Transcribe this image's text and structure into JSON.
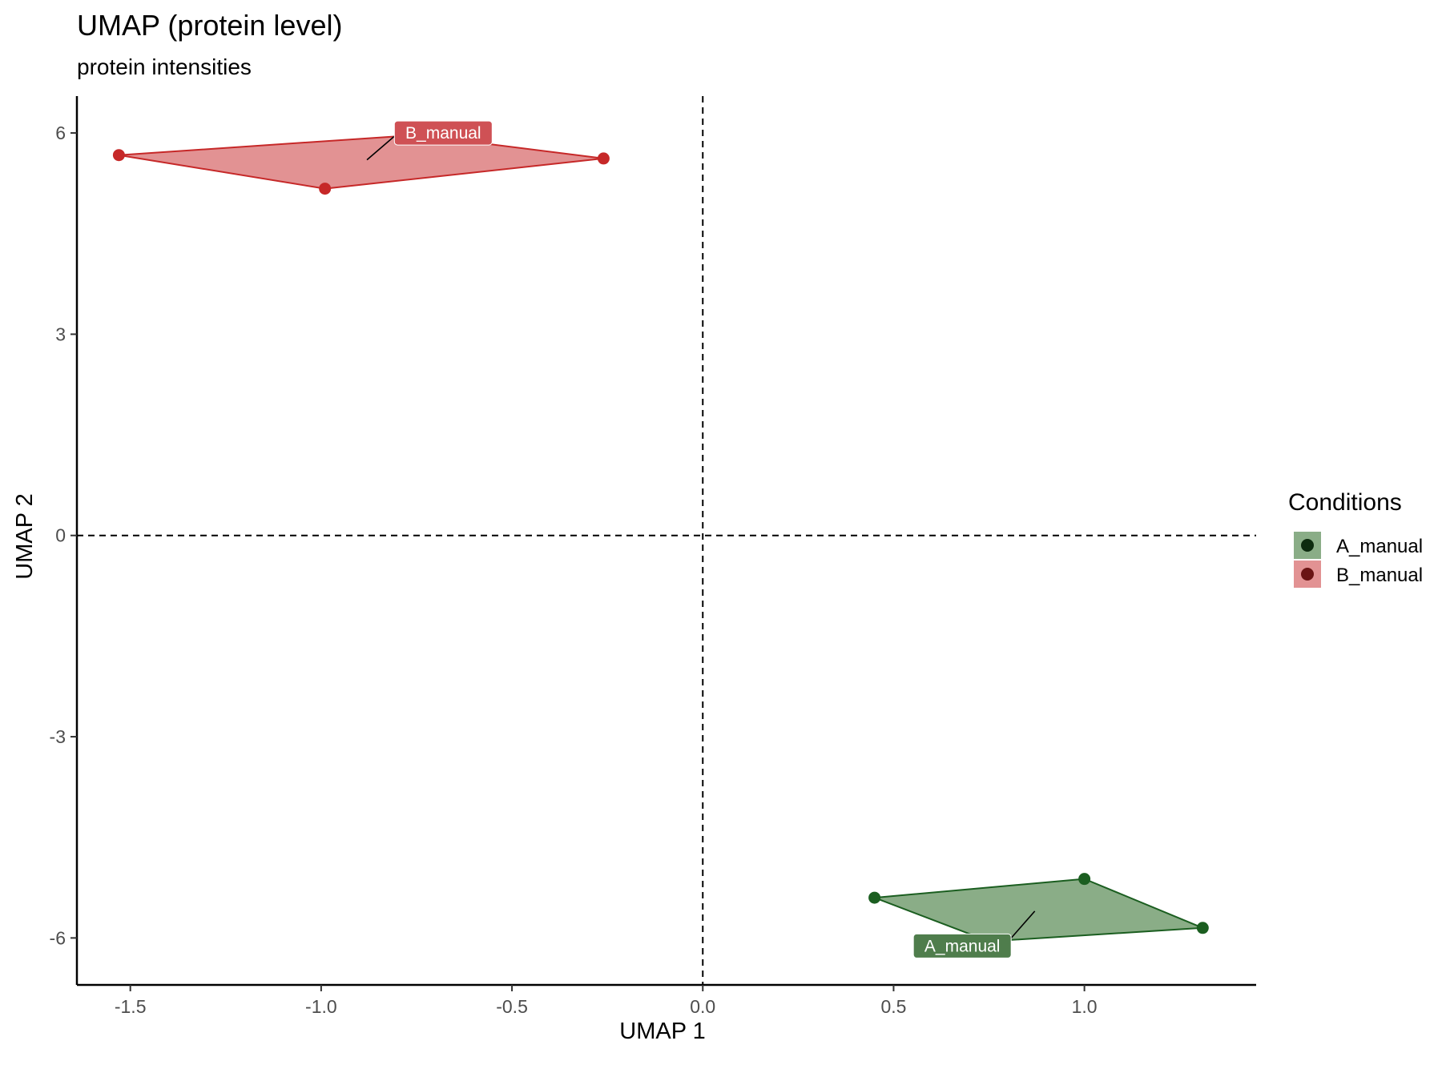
{
  "chart_data": {
    "type": "scatter",
    "title": "UMAP (protein level)",
    "subtitle": "protein intensities",
    "xlabel": "UMAP 1",
    "ylabel": "UMAP 2",
    "xlim": [
      -1.64,
      1.45
    ],
    "ylim": [
      -6.7,
      6.55
    ],
    "x_ticks": [
      -1.5,
      -1.0,
      -0.5,
      0.0,
      0.5,
      1.0
    ],
    "x_tick_labels": [
      "-1.5",
      "-1.0",
      "-0.5",
      "0.0",
      "0.5",
      "1.0"
    ],
    "y_ticks": [
      -6,
      -3,
      0,
      3,
      6
    ],
    "y_tick_labels": [
      "-6",
      "-3",
      "0",
      "3",
      "6"
    ],
    "reference_lines": {
      "x": 0,
      "y": 0,
      "style": "dashed"
    },
    "grid": false,
    "legend": {
      "title": "Conditions",
      "placement": "right"
    },
    "series": [
      {
        "name": "A_manual",
        "color": "#1b5e20",
        "fill": "#8aad87",
        "label_bg": "#4f7d4c",
        "points": [
          {
            "x": 0.45,
            "y": -5.4
          },
          {
            "x": 1.0,
            "y": -5.12
          },
          {
            "x": 1.31,
            "y": -5.85
          },
          {
            "x": 0.75,
            "y": -6.05
          }
        ],
        "label": {
          "text": "A_manual",
          "x": 0.68,
          "y": -6.12,
          "anchor_x": 0.87,
          "anchor_y": -5.6
        }
      },
      {
        "name": "B_manual",
        "color": "#c62828",
        "fill": "#e29293",
        "label_bg": "#cf5155",
        "points": [
          {
            "x": -1.53,
            "y": 5.67
          },
          {
            "x": -0.99,
            "y": 5.17
          },
          {
            "x": -0.26,
            "y": 5.62
          },
          {
            "x": -0.75,
            "y": 5.97
          }
        ],
        "label": {
          "text": "B_manual",
          "x": -0.68,
          "y": 6.0,
          "anchor_x": -0.88,
          "anchor_y": 5.6
        }
      }
    ]
  },
  "colors": {
    "legend_dot_a": "#0d2b0f",
    "legend_dot_b": "#6b1414"
  }
}
